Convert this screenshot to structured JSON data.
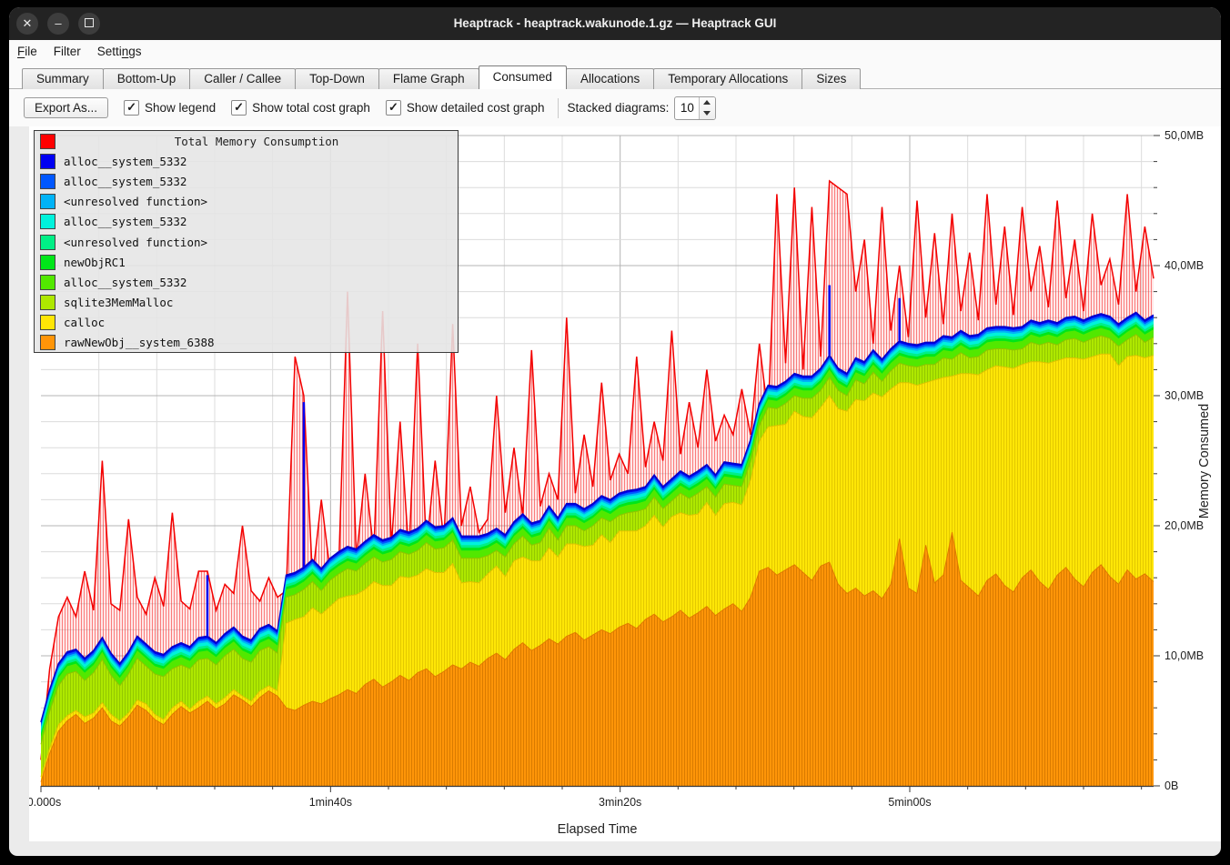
{
  "window": {
    "title": "Heaptrack - heaptrack.wakunode.1.gz — Heaptrack GUI",
    "controls": {
      "close": "✕",
      "minimize": "–",
      "maximize": "maximize-square"
    }
  },
  "menu": {
    "items": [
      {
        "label": "File",
        "underline_char_index": 0
      },
      {
        "label": "Filter",
        "underline_char_index": -1
      },
      {
        "label": "Settings",
        "underline_char_index": 5
      }
    ]
  },
  "tabs": {
    "items": [
      "Summary",
      "Bottom-Up",
      "Caller / Callee",
      "Top-Down",
      "Flame Graph",
      "Consumed",
      "Allocations",
      "Temporary Allocations",
      "Sizes"
    ],
    "active": "Consumed"
  },
  "toolbar": {
    "export_label": "Export As...",
    "checkboxes": [
      {
        "label": "Show legend",
        "checked": true
      },
      {
        "label": "Show total cost graph",
        "checked": true
      },
      {
        "label": "Show detailed cost graph",
        "checked": true
      }
    ],
    "check_glyph": "✓",
    "stacked_label": "Stacked diagrams:",
    "stacked_value": "10"
  },
  "chart_data": {
    "type": "area",
    "title": "Total Memory Consumption",
    "xlabel": "Elapsed Time",
    "ylabel": "Memory Consumed",
    "x_tick_labels": [
      "00.000s",
      "1min40s",
      "3min20s",
      "5min00s"
    ],
    "x_tick_seconds": [
      0,
      100,
      200,
      300
    ],
    "x_minor_step_seconds": 20,
    "x_max_seconds": 384,
    "y_tick_labels": [
      "0B",
      "10,0MB",
      "20,0MB",
      "30,0MB",
      "40,0MB",
      "50,0MB"
    ],
    "y_tick_mb": [
      0,
      10,
      20,
      30,
      40,
      50
    ],
    "y_minor_step_mb": 2,
    "ylim": [
      0,
      50
    ],
    "grid": true,
    "legend_position": "top-left",
    "legend": [
      {
        "label": "Total Memory Consumption",
        "color": "#ff0000",
        "is_title": true
      },
      {
        "label": "alloc__system_5332",
        "color": "#0000f2"
      },
      {
        "label": "alloc__system_5332",
        "color": "#0057ff"
      },
      {
        "label": "<unresolved function>",
        "color": "#00b3f7"
      },
      {
        "label": "alloc__system_5332",
        "color": "#00f2dc"
      },
      {
        "label": "<unresolved function>",
        "color": "#00ef86"
      },
      {
        "label": "newObjRC1",
        "color": "#00e619"
      },
      {
        "label": "alloc__system_5332",
        "color": "#52e800"
      },
      {
        "label": "sqlite3MemMalloc",
        "color": "#aee800"
      },
      {
        "label": "calloc",
        "color": "#ffe606"
      },
      {
        "label": "rawNewObj__system_6388",
        "color": "#ff9508"
      }
    ],
    "sample_step_seconds": 3,
    "series_stacked_mb": {
      "rawNewObj__system_6388": [
        0.3,
        2.5,
        4.2,
        5.0,
        5.5,
        4.8,
        5.2,
        6.0,
        5.0,
        4.6,
        5.3,
        6.2,
        5.8,
        5.1,
        4.7,
        5.5,
        6.1,
        5.6,
        6.0,
        6.5,
        5.9,
        6.3,
        7.0,
        6.6,
        6.1,
        6.8,
        7.3,
        6.9,
        6.0,
        5.8,
        6.2,
        6.5,
        6.3,
        6.7,
        7.0,
        7.4,
        7.1,
        7.8,
        8.2,
        7.6,
        8.0,
        8.5,
        8.1,
        8.7,
        9.0,
        8.4,
        8.8,
        9.3,
        9.0,
        9.5,
        9.2,
        9.8,
        10.2,
        9.7,
        10.5,
        11.0,
        10.4,
        10.8,
        11.3,
        10.9,
        11.5,
        11.8,
        11.2,
        11.6,
        12.0,
        11.7,
        12.2,
        12.5,
        12.1,
        12.8,
        13.2,
        12.6,
        13.0,
        13.5,
        12.9,
        13.3,
        13.8,
        13.1,
        13.6,
        14.0,
        13.4,
        14.5,
        16.5,
        16.8,
        16.2,
        16.6,
        17.0,
        16.4,
        15.8,
        16.9,
        17.2,
        15.5,
        14.8,
        15.2,
        14.6,
        15.0,
        14.4,
        15.5,
        19.0,
        15.2,
        14.8,
        18.5,
        15.6,
        16.2,
        19.5,
        15.8,
        15.2,
        14.6,
        15.8,
        16.3,
        15.4,
        14.9,
        16.0,
        16.6,
        15.7,
        15.1,
        16.2,
        16.8,
        15.9,
        15.3,
        16.4,
        17.0,
        16.1,
        15.5,
        16.6,
        15.9,
        16.3,
        15.7
      ],
      "calloc": [
        0.4,
        0.4,
        0.5,
        0.4,
        0.3,
        0.5,
        0.4,
        0.4,
        0.5,
        0.4,
        0.3,
        0.4,
        0.5,
        0.4,
        0.4,
        0.5,
        0.4,
        0.3,
        0.5,
        0.4,
        0.4,
        0.5,
        0.4,
        0.3,
        0.4,
        0.5,
        0.4,
        0.4,
        6.5,
        7.0,
        6.8,
        7.2,
        6.9,
        7.1,
        7.4,
        7.2,
        7.6,
        7.3,
        7.5,
        7.8,
        7.4,
        7.6,
        7.9,
        7.5,
        7.7,
        8.0,
        7.6,
        7.8,
        6.6,
        6.2,
        6.4,
        6.5,
        6.7,
        6.4,
        6.8,
        6.6,
        6.9,
        6.5,
        7.0,
        6.7,
        7.1,
        6.8,
        7.2,
        6.9,
        7.3,
        7.0,
        7.4,
        7.1,
        7.5,
        7.2,
        7.6,
        7.3,
        7.7,
        7.5,
        7.9,
        7.6,
        8.0,
        7.7,
        8.1,
        7.8,
        8.2,
        9.0,
        10.0,
        10.8,
        11.5,
        11.2,
        11.8,
        12.0,
        12.5,
        12.2,
        12.8,
        13.5,
        14.0,
        14.5,
        15.0,
        15.2,
        15.5,
        15.0,
        12.0,
        15.8,
        16.0,
        12.5,
        15.6,
        15.2,
        12.0,
        15.9,
        16.5,
        17.0,
        16.2,
        16.0,
        16.8,
        17.2,
        16.4,
        16.0,
        16.9,
        17.4,
        16.5,
        16.1,
        17.0,
        17.5,
        16.6,
        16.2,
        17.1,
        16.8,
        16.4,
        17.2,
        16.6,
        17.4
      ],
      "sqlite3MemMalloc": [
        2.5,
        2.8,
        3.0,
        3.2,
        3.0,
        2.8,
        3.1,
        3.3,
        3.0,
        2.7,
        3.0,
        3.2,
        2.9,
        3.1,
        3.3,
        3.0,
        2.8,
        3.1,
        3.2,
        2.9,
        3.0,
        3.2,
        3.1,
        2.9,
        3.0,
        3.1,
        3.0,
        2.9,
        2.0,
        1.9,
        2.1,
        2.0,
        1.8,
        2.0,
        1.9,
        2.1,
        1.8,
        2.0,
        1.9,
        1.8,
        2.0,
        1.9,
        1.8,
        1.9,
        2.0,
        1.8,
        1.9,
        1.8,
        1.9,
        1.8,
        1.9,
        1.4,
        1.2,
        1.5,
        1.3,
        1.6,
        1.2,
        1.4,
        1.5,
        1.3,
        1.4,
        1.4,
        1.2,
        1.5,
        1.3,
        1.6,
        1.2,
        1.4,
        1.5,
        1.3,
        1.4,
        1.4,
        1.2,
        1.5,
        1.3,
        1.6,
        1.2,
        1.4,
        1.5,
        1.3,
        1.4,
        1.4,
        1.2,
        1.5,
        1.3,
        1.6,
        1.2,
        1.4,
        1.5,
        1.3,
        1.4,
        1.4,
        1.2,
        1.5,
        1.3,
        1.6,
        1.2,
        1.4,
        1.5,
        1.3,
        1.4,
        1.4,
        1.2,
        1.5,
        1.3,
        1.6,
        1.2,
        1.4,
        1.5,
        1.3,
        1.4,
        1.4,
        1.2,
        1.5,
        1.3,
        1.6,
        1.2,
        1.4,
        1.5,
        1.3,
        1.4,
        1.4,
        1.2,
        1.5,
        1.3,
        1.6,
        1.2,
        1.4
      ],
      "thin_layers": [
        {
          "label": "alloc__system_5332",
          "color": "#52e800",
          "thickness_mb": 0.6
        },
        {
          "label": "newObjRC1",
          "color": "#00e619",
          "thickness_mb": 0.2
        },
        {
          "label": "<unresolved function>",
          "color": "#00ef86",
          "thickness_mb": 0.2
        },
        {
          "label": "alloc__system_5332",
          "color": "#00f2dc",
          "thickness_mb": 0.25
        },
        {
          "label": "<unresolved function>",
          "color": "#00b3f7",
          "thickness_mb": 0.15
        },
        {
          "label": "alloc__system_5332",
          "color": "#0057ff",
          "thickness_mb": 0.15
        },
        {
          "label": "alloc__system_5332",
          "color": "#0000f2",
          "thickness_mb": 0.15
        }
      ]
    },
    "total_mb": [
      2,
      9,
      13,
      14.5,
      13,
      16.5,
      13.5,
      25,
      14,
      13.5,
      20.5,
      14.5,
      13.2,
      16,
      13.8,
      21,
      14.2,
      13.6,
      16.5,
      16.5,
      13.5,
      15.5,
      14.8,
      20,
      15,
      14.2,
      16,
      14.5,
      15,
      33,
      30,
      16,
      22,
      16.5,
      17,
      38,
      17.5,
      24,
      18,
      36.5,
      18.5,
      28,
      17.8,
      34,
      18.2,
      25,
      18.8,
      35.5,
      20,
      23,
      19.5,
      20.5,
      30,
      21,
      26,
      20.8,
      33.5,
      21.5,
      24,
      22,
      36,
      22.5,
      27,
      23,
      31,
      23.5,
      25.5,
      24,
      33,
      24.5,
      28,
      25,
      35,
      25.5,
      29.5,
      26,
      32,
      26.5,
      28.5,
      27,
      30.5,
      27,
      34,
      28.5,
      45.5,
      32.5,
      46,
      32,
      44.5,
      33,
      46.5,
      46,
      45.5,
      38,
      42,
      34,
      44.5,
      35,
      40,
      34.5,
      45,
      36,
      42.5,
      35.5,
      44,
      36.5,
      41,
      35.8,
      45.5,
      37,
      43,
      36.2,
      44.5,
      38,
      41.5,
      36.8,
      45,
      37.5,
      42,
      36.5,
      44,
      38.5,
      40.5,
      37,
      45.5,
      38,
      43,
      39
    ],
    "blue_spikes": [
      {
        "index": 19,
        "mb": 16.2
      },
      {
        "index": 30,
        "mb": 29.5
      },
      {
        "index": 90,
        "mb": 38.5
      },
      {
        "index": 98,
        "mb": 37.5
      }
    ],
    "colors": {
      "total": "#ff0000",
      "plot_bg": "#ffffff",
      "grid_minor": "#dcdcdc",
      "grid_major": "#b4b4b4",
      "axis": "#3a3a3a"
    }
  }
}
